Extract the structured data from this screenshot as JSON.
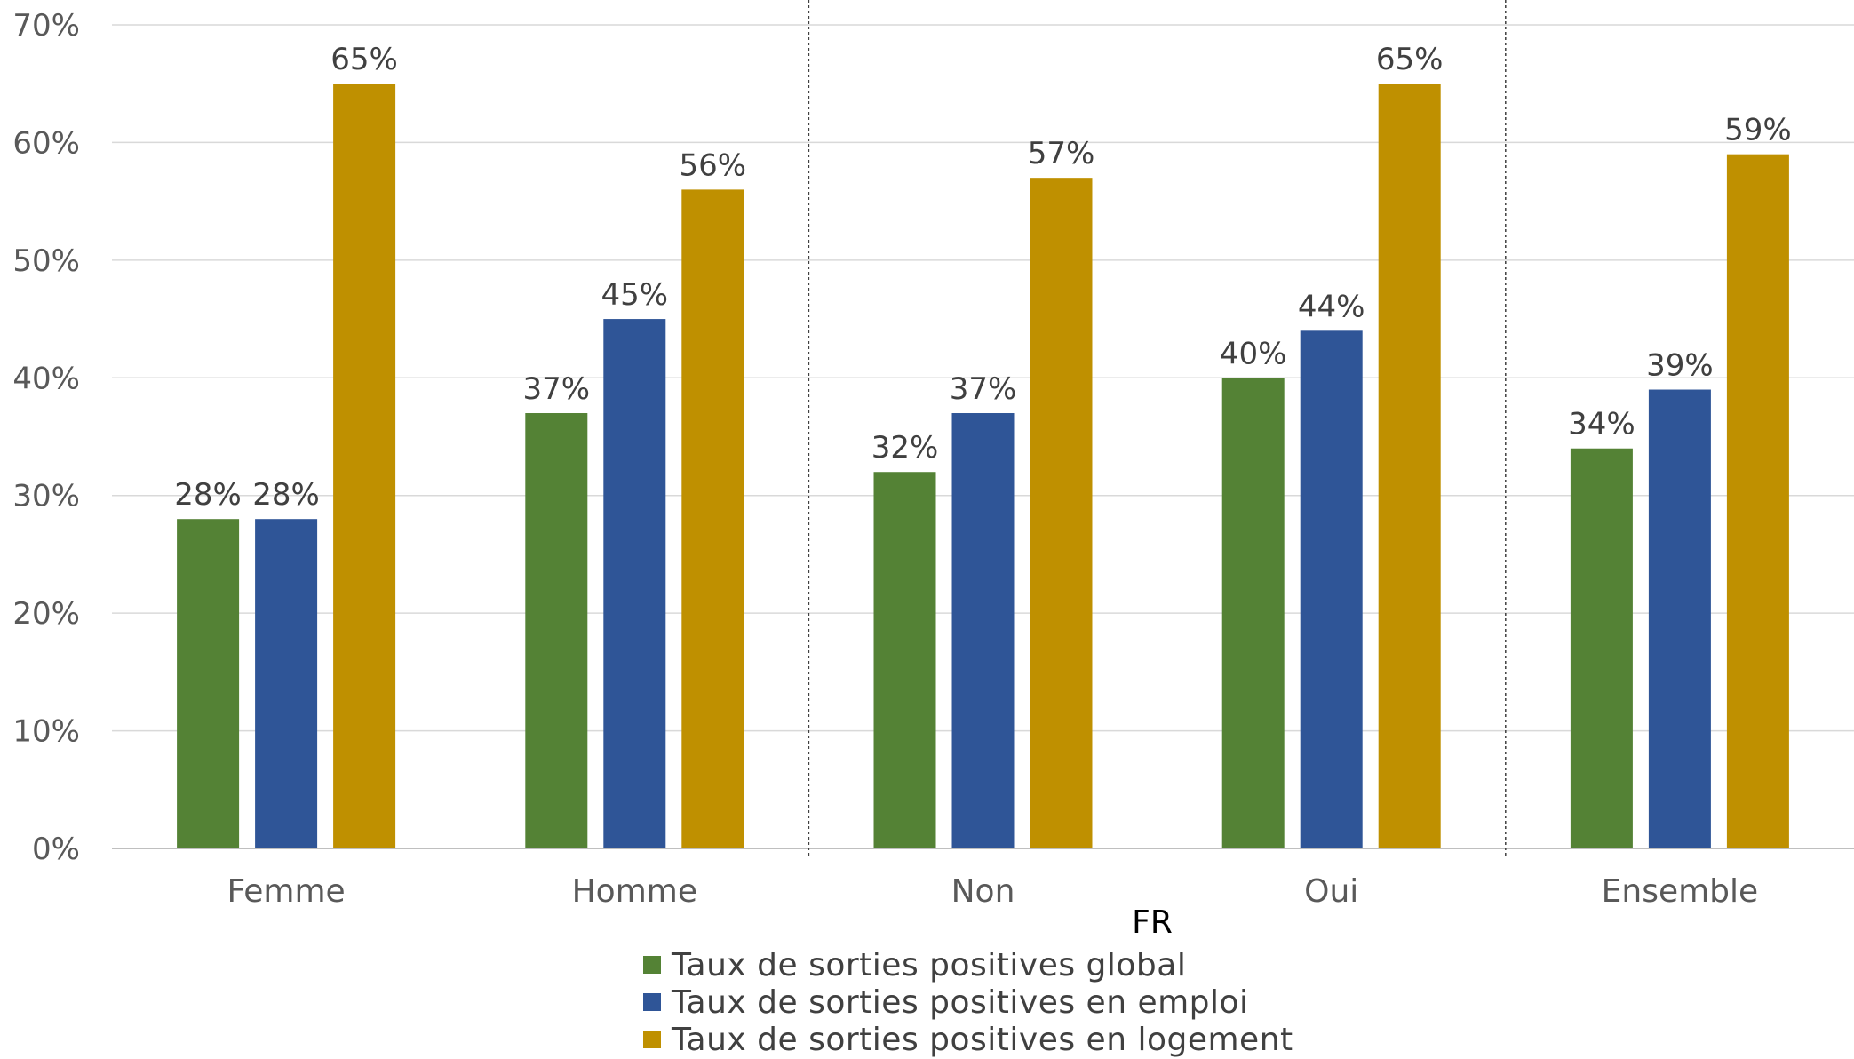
{
  "chart_data": {
    "type": "bar",
    "categories": [
      "Femme",
      "Homme",
      "Non",
      "Oui",
      "Ensemble"
    ],
    "group_label": "FR",
    "series": [
      {
        "name": "Taux de sorties positives global",
        "color": "#548235",
        "values": [
          0.28,
          0.37,
          0.32,
          0.4,
          0.34
        ]
      },
      {
        "name": "Taux de sorties positives en emploi",
        "color": "#2F5597",
        "values": [
          0.28,
          0.45,
          0.37,
          0.44,
          0.39
        ]
      },
      {
        "name": "Taux de sorties positives en logement",
        "color": "#BF9000",
        "values": [
          0.65,
          0.56,
          0.57,
          0.65,
          0.59
        ]
      }
    ],
    "data_labels": [
      [
        "28%",
        "37%",
        "32%",
        "40%",
        "34%"
      ],
      [
        "28%",
        "45%",
        "37%",
        "44%",
        "39%"
      ],
      [
        "65%",
        "56%",
        "57%",
        "65%",
        "59%"
      ]
    ],
    "ylim": [
      0,
      0.7
    ],
    "yticks": [
      "0%",
      "10%",
      "20%",
      "30%",
      "40%",
      "50%",
      "60%",
      "70%"
    ],
    "grid": true,
    "legend_position": "bottom",
    "group_separators_after": [
      "Homme",
      "Oui"
    ]
  }
}
